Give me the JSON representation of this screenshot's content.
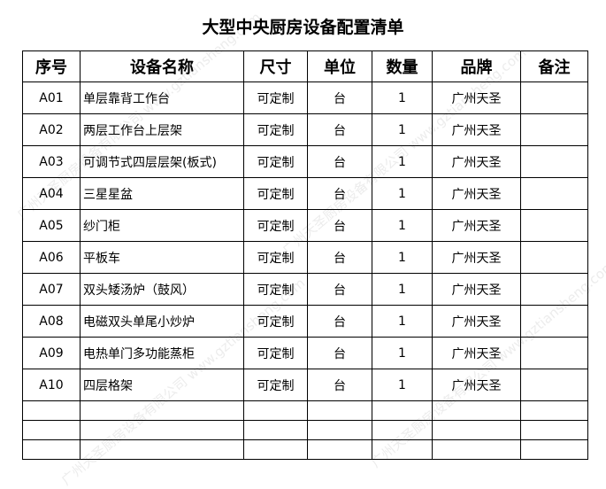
{
  "title": "大型中央厨房设备配置清单",
  "watermark": "广州天圣厨房设备有限公司 www.gztiansheng.com",
  "headers": [
    "序号",
    "设备名称",
    "尺寸",
    "单位",
    "数量",
    "品牌",
    "备注"
  ],
  "rows": [
    {
      "id": "A01",
      "name": "单层靠背工作台",
      "size": "可定制",
      "unit": "台",
      "qty": "1",
      "brand": "广州天圣",
      "note": ""
    },
    {
      "id": "A02",
      "name": "两层工作台上层架",
      "size": "可定制",
      "unit": "台",
      "qty": "1",
      "brand": "广州天圣",
      "note": ""
    },
    {
      "id": "A03",
      "name": "可调节式四层层架(板式)",
      "size": "可定制",
      "unit": "台",
      "qty": "1",
      "brand": "广州天圣",
      "note": ""
    },
    {
      "id": "A04",
      "name": "三星星盆",
      "size": "可定制",
      "unit": "台",
      "qty": "1",
      "brand": "广州天圣",
      "note": ""
    },
    {
      "id": "A05",
      "name": "纱门柜",
      "size": "可定制",
      "unit": "台",
      "qty": "1",
      "brand": "广州天圣",
      "note": ""
    },
    {
      "id": "A06",
      "name": "平板车",
      "size": "可定制",
      "unit": "台",
      "qty": "1",
      "brand": "广州天圣",
      "note": ""
    },
    {
      "id": "A07",
      "name": "双头矮汤炉（鼓风）",
      "size": "可定制",
      "unit": "台",
      "qty": "1",
      "brand": "广州天圣",
      "note": ""
    },
    {
      "id": "A08",
      "name": "电磁双头单尾小炒炉",
      "size": "可定制",
      "unit": "台",
      "qty": "1",
      "brand": "广州天圣",
      "note": ""
    },
    {
      "id": "A09",
      "name": "电热单门多功能蒸柜",
      "size": "可定制",
      "unit": "台",
      "qty": "1",
      "brand": "广州天圣",
      "note": ""
    },
    {
      "id": "A10",
      "name": "四层格架",
      "size": "可定制",
      "unit": "台",
      "qty": "1",
      "brand": "广州天圣",
      "note": ""
    }
  ]
}
